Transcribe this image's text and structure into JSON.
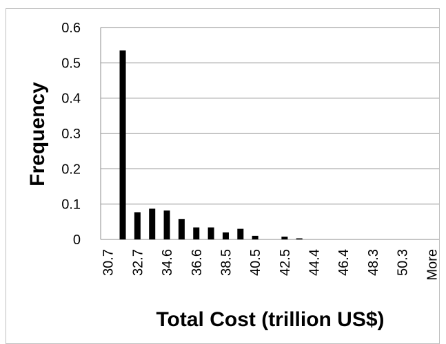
{
  "chart_data": {
    "type": "bar",
    "xlabel": "Total Cost (trillion US$)",
    "ylabel": "Frequency",
    "ylim": [
      0,
      0.6
    ],
    "yticks": [
      "0",
      "0.1",
      "0.2",
      "0.3",
      "0.4",
      "0.5",
      "0.6"
    ],
    "categories": [
      "30.7",
      "31.7",
      "32.7",
      "33.6",
      "34.6",
      "35.6",
      "36.6",
      "37.5",
      "38.5",
      "39.5",
      "40.5",
      "41.5",
      "42.5",
      "43.4",
      "44.4",
      "45.4",
      "46.4",
      "47.3",
      "48.3",
      "49.3",
      "50.3",
      "51.3",
      "More"
    ],
    "tick_labels": [
      "30.7",
      "",
      "32.7",
      "",
      "34.6",
      "",
      "36.6",
      "",
      "38.5",
      "",
      "40.5",
      "",
      "42.5",
      "",
      "44.4",
      "",
      "46.4",
      "",
      "48.3",
      "",
      "50.3",
      "",
      "More"
    ],
    "values": [
      0,
      0.535,
      0.077,
      0.087,
      0.082,
      0.058,
      0.034,
      0.034,
      0.02,
      0.03,
      0.01,
      0,
      0.008,
      0.003,
      0,
      0,
      0,
      0,
      0,
      0,
      0,
      0,
      0
    ],
    "grid": true,
    "legend": "none",
    "colors": {
      "bar": "#000000",
      "grid": "#8c8c8c"
    }
  }
}
